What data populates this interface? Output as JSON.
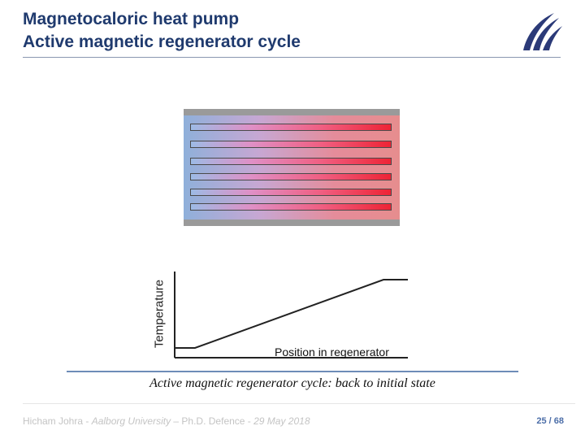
{
  "slide": {
    "title_line1": "Magnetocaloric heat pump",
    "title_line2": "Active magnetic regenerator cycle",
    "logo_icon": "aalborg-university-logo",
    "caption": "Active magnetic regenerator cycle: back to initial state"
  },
  "diagram": {
    "channel_count": 7,
    "gradient_colors": [
      "#9dbbe5",
      "#df90c6",
      "#f05f82",
      "#ee2435"
    ]
  },
  "graph": {
    "y_label": "Temperature",
    "x_label": "Position in regenerator",
    "profile": "low flat, linear rise, high flat"
  },
  "footer": {
    "author": "Hicham Johra - ",
    "institution": "Aalborg University",
    "rest": " – Ph.D. Defence - ",
    "date": "29 May 2018",
    "page": "25 / 68"
  },
  "colors": {
    "title": "#1f3a6e",
    "accent_rule": "#6e8cb8",
    "page_number": "#4c6ea8"
  }
}
